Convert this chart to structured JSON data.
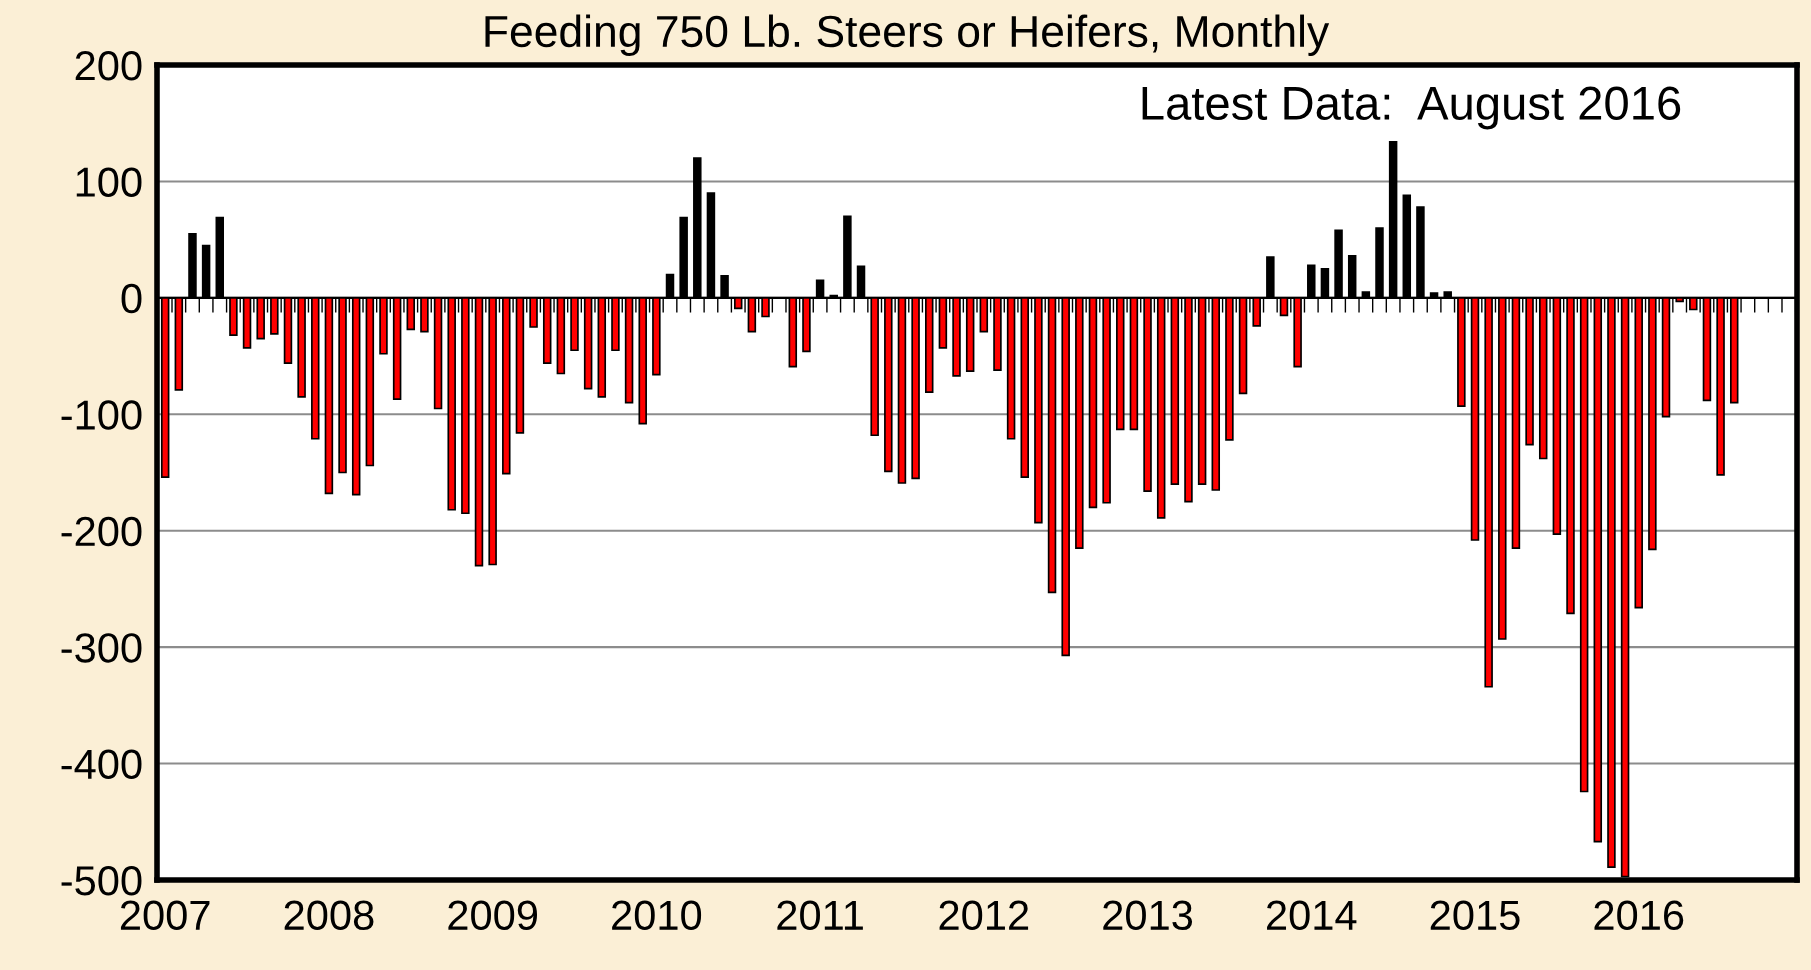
{
  "chart_data": {
    "type": "bar",
    "title": "Feeding 750 Lb. Steers or Heifers, Monthly",
    "annotations": [
      "Latest Data:  August 2016"
    ],
    "categories": [
      "2007",
      null,
      null,
      null,
      null,
      null,
      null,
      null,
      null,
      null,
      null,
      null,
      "2008",
      null,
      null,
      null,
      null,
      null,
      null,
      null,
      null,
      null,
      null,
      null,
      "2009",
      null,
      null,
      null,
      null,
      null,
      null,
      null,
      null,
      null,
      null,
      null,
      "2010",
      null,
      null,
      null,
      null,
      null,
      null,
      null,
      null,
      null,
      null,
      null,
      "2011",
      null,
      null,
      null,
      null,
      null,
      null,
      null,
      null,
      null,
      null,
      null,
      "2012",
      null,
      null,
      null,
      null,
      null,
      null,
      null,
      null,
      null,
      null,
      null,
      "2013",
      null,
      null,
      null,
      null,
      null,
      null,
      null,
      null,
      null,
      null,
      null,
      "2014",
      null,
      null,
      null,
      null,
      null,
      null,
      null,
      null,
      null,
      null,
      null,
      "2015",
      null,
      null,
      null,
      null,
      null,
      null,
      null,
      null,
      null,
      null,
      null,
      "2016",
      null,
      null,
      null,
      null,
      null,
      null,
      null,
      null,
      null,
      null,
      null
    ],
    "values": [
      -154,
      -79,
      55,
      45,
      69,
      -32,
      -43,
      -35,
      -31,
      -56,
      -85,
      -121,
      -168,
      -150,
      -169,
      -144,
      -48,
      -87,
      -27,
      -29,
      -95,
      -182,
      -185,
      -230,
      -229,
      -151,
      -116,
      -25,
      -56,
      -65,
      -45,
      -78,
      -85,
      -45,
      -90,
      -108,
      -66,
      20,
      69,
      120,
      90,
      19,
      -9,
      -29,
      -16,
      0,
      -59,
      -46,
      15,
      2,
      70,
      27,
      -118,
      -149,
      -159,
      -155,
      -81,
      -43,
      -67,
      -63,
      -29,
      -62,
      -121,
      -154,
      -193,
      -253,
      -307,
      -215,
      -180,
      -176,
      -113,
      -113,
      -166,
      -189,
      -160,
      -175,
      -160,
      -165,
      -122,
      -82,
      -24,
      35,
      -15,
      -59,
      28,
      25,
      58,
      36,
      5,
      60,
      134,
      88,
      78,
      4,
      5,
      -93,
      -208,
      -334,
      -293,
      -215,
      -126,
      -138,
      -203,
      -271,
      -424,
      -467,
      -489,
      -497,
      -266,
      -216,
      -102,
      -3,
      -10,
      -88,
      -152,
      -90,
      null,
      null,
      null,
      null
    ],
    "colors": [
      "#ff0000",
      "#ff0000",
      "#000000",
      "#000000",
      "#000000",
      "#ff0000",
      "#ff0000",
      "#ff0000",
      "#ff0000",
      "#ff0000",
      "#ff0000",
      "#ff0000",
      "#ff0000",
      "#ff0000",
      "#ff0000",
      "#ff0000",
      "#ff0000",
      "#ff0000",
      "#ff0000",
      "#ff0000",
      "#ff0000",
      "#ff0000",
      "#ff0000",
      "#ff0000",
      "#ff0000",
      "#ff0000",
      "#ff0000",
      "#ff0000",
      "#ff0000",
      "#ff0000",
      "#ff0000",
      "#ff0000",
      "#ff0000",
      "#ff0000",
      "#ff0000",
      "#ff0000",
      "#ff0000",
      "#000000",
      "#000000",
      "#000000",
      "#000000",
      "#000000",
      "#ff0000",
      "#ff0000",
      "#ff0000",
      "#000000",
      "#ff0000",
      "#ff0000",
      "#000000",
      "#000000",
      "#000000",
      "#000000",
      "#ff0000",
      "#ff0000",
      "#ff0000",
      "#ff0000",
      "#ff0000",
      "#ff0000",
      "#ff0000",
      "#ff0000",
      "#ff0000",
      "#ff0000",
      "#ff0000",
      "#ff0000",
      "#ff0000",
      "#ff0000",
      "#ff0000",
      "#ff0000",
      "#ff0000",
      "#ff0000",
      "#ff0000",
      "#ff0000",
      "#ff0000",
      "#ff0000",
      "#ff0000",
      "#ff0000",
      "#ff0000",
      "#ff0000",
      "#ff0000",
      "#ff0000",
      "#ff0000",
      "#000000",
      "#ff0000",
      "#ff0000",
      "#000000",
      "#000000",
      "#000000",
      "#000000",
      "#000000",
      "#000000",
      "#000000",
      "#000000",
      "#000000",
      "#000000",
      "#000000",
      "#ff0000",
      "#ff0000",
      "#ff0000",
      "#ff0000",
      "#ff0000",
      "#ff0000",
      "#ff0000",
      "#ff0000",
      "#ff0000",
      "#ff0000",
      "#ff0000",
      "#ff0000",
      "#ff0000",
      "#ff0000",
      "#ff0000",
      "#ff0000",
      "#ff0000",
      "#ff0000",
      "#ff0000",
      "#ff0000",
      "#ff0000",
      "#ff0000",
      "#ff0000",
      "#ff0000",
      "#ff0000"
    ],
    "ylim": [
      -500,
      200
    ],
    "yticks": [
      -500,
      -400,
      -300,
      -200,
      -100,
      0,
      100,
      200
    ],
    "grid": "y",
    "ref_lines": [
      {
        "axis": "y",
        "value": 0,
        "color": "#000000"
      }
    ]
  }
}
